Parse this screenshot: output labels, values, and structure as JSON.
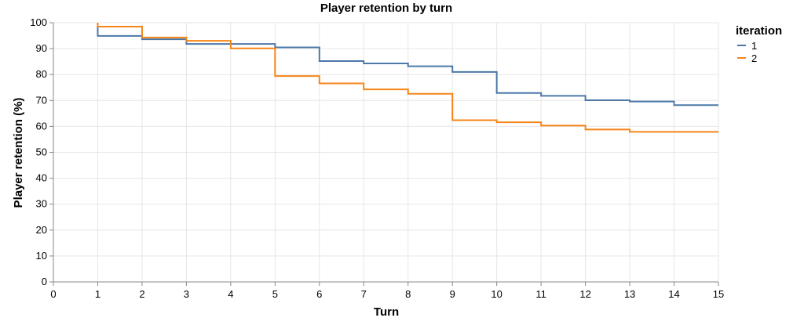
{
  "chart_data": {
    "type": "line",
    "interpolation": "step-after",
    "title": "Player retention by turn",
    "xlabel": "Turn",
    "ylabel": "Player retention (%)",
    "xlim": [
      0,
      15
    ],
    "ylim": [
      0,
      100
    ],
    "x_ticks": [
      "0",
      "1",
      "2",
      "3",
      "4",
      "5",
      "6",
      "7",
      "8",
      "9",
      "10",
      "11",
      "12",
      "13",
      "14",
      "15"
    ],
    "y_ticks": [
      "0",
      "10",
      "20",
      "30",
      "40",
      "50",
      "60",
      "70",
      "80",
      "90",
      "100"
    ],
    "grid": true,
    "legend": {
      "title": "iteration",
      "placement": "right",
      "entries": [
        "1",
        "2"
      ]
    },
    "x": [
      1,
      2,
      3,
      4,
      5,
      6,
      7,
      8,
      9,
      10,
      11,
      12,
      13,
      14,
      15
    ],
    "series": [
      {
        "name": "1",
        "color": "#4c78a8",
        "start": 100,
        "values": [
          94.9,
          93.6,
          91.8,
          91.8,
          90.5,
          85.2,
          84.3,
          83.2,
          81.0,
          72.9,
          71.8,
          70.1,
          69.6,
          68.2,
          68.2
        ]
      },
      {
        "name": "2",
        "color": "#f58518",
        "start": 100,
        "values": [
          98.5,
          94.3,
          93.0,
          90.1,
          79.4,
          76.6,
          74.3,
          72.6,
          62.4,
          61.6,
          60.3,
          58.8,
          57.9,
          57.9,
          57.9
        ]
      }
    ]
  }
}
